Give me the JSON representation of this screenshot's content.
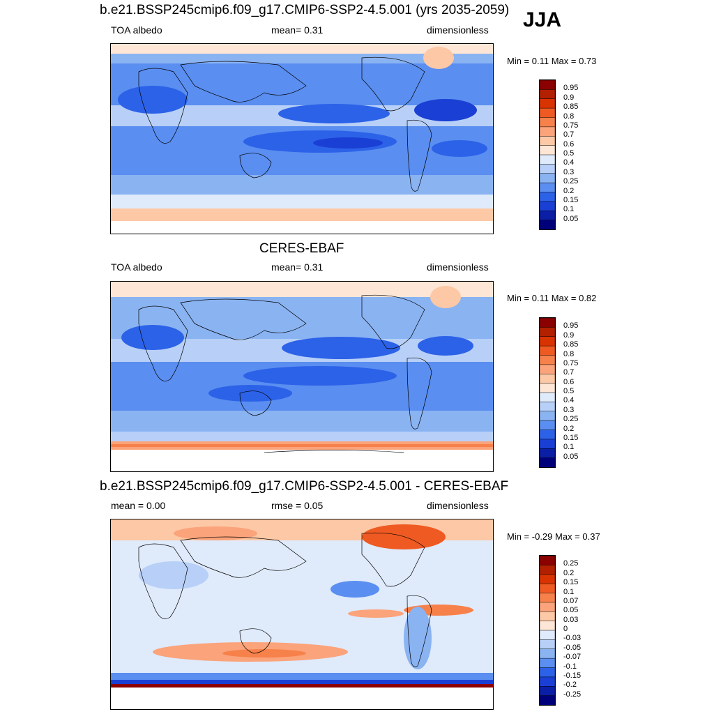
{
  "season": "JJA",
  "panels": [
    {
      "title": "b.e21.BSSP245cmip6.f09_g17.CMIP6-SSP2-4.5.001 (yrs 2035-2059)",
      "left_label": "TOA albedo",
      "mid_label": "mean=   0.31",
      "right_label": "dimensionless",
      "minmax": "Min =   0.11 Max =   0.73",
      "colorbar": {
        "levels": [
          "0.95",
          "0.9",
          "0.85",
          "0.8",
          "0.75",
          "0.7",
          "0.6",
          "0.5",
          "0.4",
          "0.3",
          "0.25",
          "0.2",
          "0.15",
          "0.1",
          "0.05"
        ],
        "colors": [
          "#8b0000",
          "#b22000",
          "#d83300",
          "#ef5a22",
          "#f7814a",
          "#fba37a",
          "#fdc8a6",
          "#fde6d6",
          "#dfeafb",
          "#b8d0f7",
          "#8ab3f2",
          "#5a8ef0",
          "#2c62e8",
          "#1a3fd4",
          "#0a1ea6",
          "#00007a"
        ]
      },
      "map_field": "model"
    },
    {
      "title": "CERES-EBAF",
      "left_label": "TOA albedo",
      "mid_label": "mean=   0.31",
      "right_label": "dimensionless",
      "minmax": "Min =   0.11 Max =   0.82",
      "colorbar": {
        "levels": [
          "0.95",
          "0.9",
          "0.85",
          "0.8",
          "0.75",
          "0.7",
          "0.6",
          "0.5",
          "0.4",
          "0.3",
          "0.25",
          "0.2",
          "0.15",
          "0.1",
          "0.05"
        ],
        "colors": [
          "#8b0000",
          "#b22000",
          "#d83300",
          "#ef5a22",
          "#f7814a",
          "#fba37a",
          "#fdc8a6",
          "#fde6d6",
          "#dfeafb",
          "#b8d0f7",
          "#8ab3f2",
          "#5a8ef0",
          "#2c62e8",
          "#1a3fd4",
          "#0a1ea6",
          "#00007a"
        ]
      },
      "map_field": "obs"
    },
    {
      "title": "b.e21.BSSP245cmip6.f09_g17.CMIP6-SSP2-4.5.001 - CERES-EBAF",
      "left_label": "mean =    0.00",
      "mid_label": "rmse =    0.05",
      "right_label": "dimensionless",
      "minmax": "Min = -0.29 Max =   0.37",
      "colorbar": {
        "levels": [
          "0.25",
          "0.2",
          "0.15",
          "0.1",
          "0.07",
          "0.05",
          "0.03",
          "0",
          "-0.03",
          "-0.05",
          "-0.07",
          "-0.1",
          "-0.15",
          "-0.2",
          "-0.25"
        ],
        "colors": [
          "#8b0000",
          "#b22000",
          "#d83300",
          "#ef5a22",
          "#f7814a",
          "#fba37a",
          "#fdc8a6",
          "#fde6d6",
          "#dfeafb",
          "#b8d0f7",
          "#8ab3f2",
          "#5a8ef0",
          "#2c62e8",
          "#1a3fd4",
          "#0a1ea6",
          "#00007a"
        ]
      },
      "map_field": "diff"
    }
  ]
}
